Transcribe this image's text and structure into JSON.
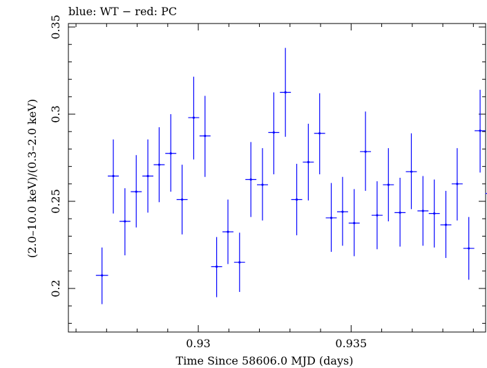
{
  "chart_data": {
    "type": "scatter",
    "title": "blue: WT − red: PC",
    "xlabel": "Time Since 58606.0 MJD (days)",
    "ylabel": "(2.0–10.0 keV)/(0.3–2.0 keV)",
    "xlim": [
      0.92575,
      0.9394
    ],
    "ylim": [
      0.175,
      0.352
    ],
    "x_ticks": [
      0.93,
      0.935
    ],
    "x_tick_labels": [
      "0.93",
      "0.935"
    ],
    "y_ticks": [
      0.2,
      0.25,
      0.3,
      0.35
    ],
    "y_tick_labels": [
      "0.2",
      "0.25",
      "0.3",
      "0.35"
    ],
    "grid": false,
    "series": [
      {
        "color": "#0000ff",
        "points": [
          {
            "x": 0.92685,
            "y": 0.2075,
            "xerr": 0.0002,
            "ylo": 0.191,
            "yhi": 0.2235
          },
          {
            "x": 0.92722,
            "y": 0.2645,
            "xerr": 0.00018,
            "ylo": 0.243,
            "yhi": 0.2855
          },
          {
            "x": 0.9276,
            "y": 0.2385,
            "xerr": 0.00018,
            "ylo": 0.219,
            "yhi": 0.2575
          },
          {
            "x": 0.92797,
            "y": 0.2555,
            "xerr": 0.00018,
            "ylo": 0.235,
            "yhi": 0.2765
          },
          {
            "x": 0.92835,
            "y": 0.2645,
            "xerr": 0.00018,
            "ylo": 0.2435,
            "yhi": 0.2855
          },
          {
            "x": 0.92872,
            "y": 0.271,
            "xerr": 0.00018,
            "ylo": 0.2495,
            "yhi": 0.2925
          },
          {
            "x": 0.9291,
            "y": 0.2775,
            "xerr": 0.00018,
            "ylo": 0.2555,
            "yhi": 0.3
          },
          {
            "x": 0.92947,
            "y": 0.251,
            "xerr": 0.00018,
            "ylo": 0.231,
            "yhi": 0.271
          },
          {
            "x": 0.92985,
            "y": 0.298,
            "xerr": 0.00018,
            "ylo": 0.274,
            "yhi": 0.3215
          },
          {
            "x": 0.93022,
            "y": 0.2875,
            "xerr": 0.00018,
            "ylo": 0.264,
            "yhi": 0.3105
          },
          {
            "x": 0.9306,
            "y": 0.2125,
            "xerr": 0.00018,
            "ylo": 0.195,
            "yhi": 0.2295
          },
          {
            "x": 0.93097,
            "y": 0.2325,
            "xerr": 0.00018,
            "ylo": 0.214,
            "yhi": 0.251
          },
          {
            "x": 0.93135,
            "y": 0.215,
            "xerr": 0.00018,
            "ylo": 0.198,
            "yhi": 0.232
          },
          {
            "x": 0.93172,
            "y": 0.2625,
            "xerr": 0.00018,
            "ylo": 0.241,
            "yhi": 0.284
          },
          {
            "x": 0.9321,
            "y": 0.2595,
            "xerr": 0.00018,
            "ylo": 0.239,
            "yhi": 0.2805
          },
          {
            "x": 0.93247,
            "y": 0.2895,
            "xerr": 0.00018,
            "ylo": 0.2655,
            "yhi": 0.3125
          },
          {
            "x": 0.93285,
            "y": 0.3125,
            "xerr": 0.00018,
            "ylo": 0.287,
            "yhi": 0.338
          },
          {
            "x": 0.93322,
            "y": 0.251,
            "xerr": 0.00018,
            "ylo": 0.2305,
            "yhi": 0.2715
          },
          {
            "x": 0.9336,
            "y": 0.2725,
            "xerr": 0.00018,
            "ylo": 0.2505,
            "yhi": 0.2945
          },
          {
            "x": 0.93397,
            "y": 0.289,
            "xerr": 0.00018,
            "ylo": 0.2655,
            "yhi": 0.312
          },
          {
            "x": 0.93435,
            "y": 0.2405,
            "xerr": 0.00018,
            "ylo": 0.221,
            "yhi": 0.2605
          },
          {
            "x": 0.93472,
            "y": 0.244,
            "xerr": 0.00018,
            "ylo": 0.2245,
            "yhi": 0.264
          },
          {
            "x": 0.9351,
            "y": 0.2375,
            "xerr": 0.00018,
            "ylo": 0.2185,
            "yhi": 0.257
          },
          {
            "x": 0.93547,
            "y": 0.2785,
            "xerr": 0.00018,
            "ylo": 0.256,
            "yhi": 0.3015
          },
          {
            "x": 0.93585,
            "y": 0.242,
            "xerr": 0.00018,
            "ylo": 0.2225,
            "yhi": 0.2615
          },
          {
            "x": 0.93622,
            "y": 0.2595,
            "xerr": 0.00018,
            "ylo": 0.2385,
            "yhi": 0.2805
          },
          {
            "x": 0.9366,
            "y": 0.2435,
            "xerr": 0.00018,
            "ylo": 0.224,
            "yhi": 0.2635
          },
          {
            "x": 0.93697,
            "y": 0.267,
            "xerr": 0.00018,
            "ylo": 0.2455,
            "yhi": 0.289
          },
          {
            "x": 0.93735,
            "y": 0.2445,
            "xerr": 0.00018,
            "ylo": 0.2245,
            "yhi": 0.2645
          },
          {
            "x": 0.93772,
            "y": 0.243,
            "xerr": 0.00018,
            "ylo": 0.2235,
            "yhi": 0.2625
          },
          {
            "x": 0.9381,
            "y": 0.2365,
            "xerr": 0.00018,
            "ylo": 0.2175,
            "yhi": 0.256
          },
          {
            "x": 0.93847,
            "y": 0.26,
            "xerr": 0.00018,
            "ylo": 0.239,
            "yhi": 0.2805
          },
          {
            "x": 0.93885,
            "y": 0.223,
            "xerr": 0.00018,
            "ylo": 0.205,
            "yhi": 0.241
          },
          {
            "x": 0.93922,
            "y": 0.2905,
            "xerr": 0.00018,
            "ylo": 0.2665,
            "yhi": 0.314
          },
          {
            "x": 0.93963,
            "y": 0.2545,
            "xerr": 0.00024,
            "ylo": 0.237,
            "yhi": 0.272
          }
        ]
      }
    ]
  }
}
